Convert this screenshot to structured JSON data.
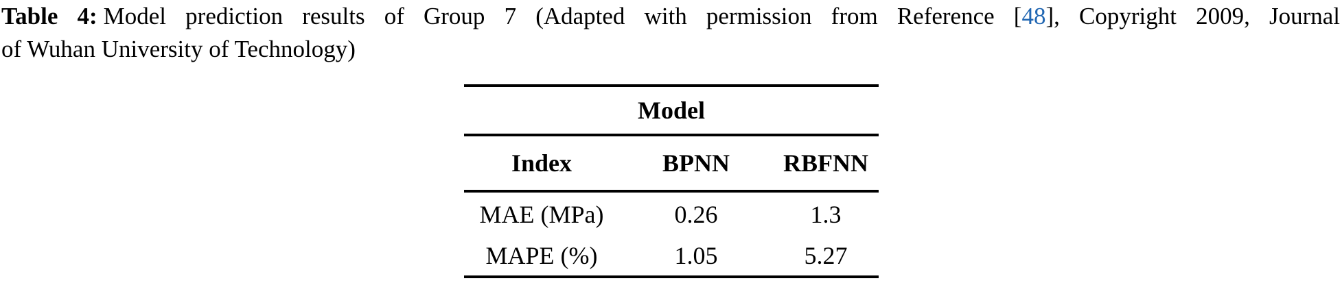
{
  "caption": {
    "label": "Table 4:",
    "pre_ref": "Model prediction results of Group 7 (Adapted with permission from Reference [",
    "ref": "48",
    "post_ref": "], Copyright 2009, Journal",
    "line2": "of Wuhan University of Technology)"
  },
  "table": {
    "spanner": "Model",
    "columns": [
      "Index",
      "BPNN",
      "RBFNN"
    ],
    "rows": [
      {
        "index": "MAE (MPa)",
        "bpnn": "0.26",
        "rbfnn": "1.3"
      },
      {
        "index": "MAPE (%)",
        "bpnn": "1.05",
        "rbfnn": "5.27"
      }
    ]
  },
  "chart_data": {
    "type": "table",
    "title": "Table 4: Model prediction results of Group 7",
    "spanner_header": "Model",
    "columns": [
      "Index",
      "BPNN",
      "RBFNN"
    ],
    "rows": [
      [
        "MAE (MPa)",
        0.26,
        1.3
      ],
      [
        "MAPE (%)",
        1.05,
        5.27
      ]
    ]
  },
  "colors": {
    "link_blue": "#2066b2",
    "text": "#000000",
    "background": "#ffffff",
    "rule": "#000000"
  }
}
